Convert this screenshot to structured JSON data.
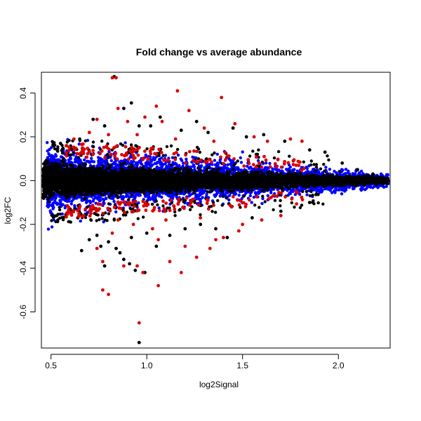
{
  "chart_data": {
    "type": "scatter",
    "title": "Fold change vs average abundance",
    "xlabel": "log2Signal",
    "ylabel": "log2FC",
    "xlim": [
      0.45,
      2.27
    ],
    "ylim": [
      -0.765,
      0.495
    ],
    "x_ticks": [
      0.5,
      1.0,
      1.5,
      2.0
    ],
    "x_tick_labels": [
      "0.5",
      "1.0",
      "1.5",
      "2.0"
    ],
    "y_ticks": [
      -0.6,
      -0.4,
      -0.2,
      0.0,
      0.2,
      0.4
    ],
    "y_tick_labels": [
      "-0.6",
      "-0.4",
      "-0.2",
      "0.0",
      "0.2",
      "0.4"
    ],
    "grid": false,
    "legend": "none",
    "colors": {
      "background_points": "#000000",
      "significant_fc": "#0000ff",
      "highlighted": "#dd0000"
    },
    "series": [
      {
        "color": "#000000",
        "points": [
          [
            0.83,
            0.475
          ],
          [
            0.92,
            0.355
          ],
          [
            0.88,
            0.33
          ],
          [
            0.72,
            0.28
          ],
          [
            0.78,
            0.25
          ],
          [
            0.96,
            0.25
          ],
          [
            1.02,
            0.25
          ],
          [
            1.07,
            0.29
          ],
          [
            1.18,
            0.23
          ],
          [
            1.26,
            0.27
          ],
          [
            1.32,
            0.22
          ],
          [
            1.45,
            0.24
          ],
          [
            1.52,
            0.2
          ],
          [
            1.61,
            0.21
          ],
          [
            1.72,
            0.18
          ],
          [
            0.55,
            0.17
          ],
          [
            0.6,
            0.15
          ],
          [
            0.65,
            0.19
          ],
          [
            0.52,
            0.08
          ],
          [
            1.85,
            0.14
          ],
          [
            1.93,
            0.13
          ],
          [
            2.02,
            0.08
          ],
          [
            2.1,
            0.05
          ],
          [
            2.18,
            0.03
          ],
          [
            2.22,
            0.01
          ],
          [
            2.24,
            -0.01
          ],
          [
            2.15,
            0.02
          ],
          [
            0.6,
            -0.13
          ],
          [
            0.64,
            -0.17
          ],
          [
            0.66,
            -0.32
          ],
          [
            0.7,
            -0.27
          ],
          [
            0.74,
            -0.25
          ],
          [
            0.76,
            -0.3
          ],
          [
            0.8,
            -0.28
          ],
          [
            0.84,
            -0.31
          ],
          [
            0.86,
            -0.33
          ],
          [
            0.88,
            -0.36
          ],
          [
            0.91,
            -0.38
          ],
          [
            0.94,
            -0.41
          ],
          [
            0.96,
            -0.74
          ],
          [
            0.99,
            -0.42
          ],
          [
            0.78,
            -0.39
          ],
          [
            1.05,
            -0.3
          ],
          [
            1.12,
            -0.25
          ],
          [
            1.2,
            -0.22
          ],
          [
            1.28,
            -0.2
          ],
          [
            1.36,
            -0.22
          ],
          [
            1.42,
            -0.26
          ],
          [
            1.55,
            -0.17
          ],
          [
            1.7,
            -0.14
          ],
          [
            1.85,
            -0.1
          ],
          [
            0.92,
            -0.26
          ],
          [
            1.0,
            -0.24
          ]
        ]
      },
      {
        "color": "#dd0000",
        "points": [
          [
            0.82,
            0.47
          ],
          [
            0.84,
            0.47
          ],
          [
            1.16,
            0.41
          ],
          [
            1.39,
            0.38
          ],
          [
            0.85,
            0.33
          ],
          [
            1.05,
            0.34
          ],
          [
            1.22,
            0.32
          ],
          [
            0.9,
            0.27
          ],
          [
            0.99,
            0.29
          ],
          [
            1.08,
            0.27
          ],
          [
            0.74,
            0.28
          ],
          [
            0.7,
            0.22
          ],
          [
            1.3,
            0.24
          ],
          [
            1.46,
            0.26
          ],
          [
            1.56,
            0.2
          ],
          [
            1.63,
            0.18
          ],
          [
            1.75,
            0.19
          ],
          [
            1.81,
            0.18
          ],
          [
            0.95,
            0.21
          ],
          [
            1.15,
            0.19
          ],
          [
            1.35,
            0.18
          ],
          [
            0.62,
            0.19
          ],
          [
            0.8,
            0.21
          ],
          [
            0.98,
            -0.42
          ],
          [
            0.8,
            -0.52
          ],
          [
            0.77,
            -0.5
          ],
          [
            1.06,
            -0.48
          ],
          [
            0.96,
            -0.65
          ],
          [
            1.18,
            -0.42
          ],
          [
            0.77,
            -0.37
          ],
          [
            0.74,
            -0.31
          ],
          [
            0.95,
            -0.39
          ],
          [
            0.88,
            -0.39
          ],
          [
            1.12,
            -0.37
          ],
          [
            1.2,
            -0.3
          ],
          [
            1.26,
            -0.35
          ],
          [
            1.33,
            -0.31
          ],
          [
            1.36,
            -0.27
          ],
          [
            1.4,
            -0.26
          ],
          [
            1.48,
            -0.23
          ],
          [
            1.5,
            -0.2
          ],
          [
            1.6,
            -0.18
          ],
          [
            1.7,
            -0.16
          ],
          [
            1.03,
            -0.22
          ],
          [
            0.93,
            -0.2
          ],
          [
            1.1,
            -0.18
          ],
          [
            1.28,
            -0.17
          ],
          [
            0.82,
            -0.24
          ],
          [
            0.85,
            -0.18
          ],
          [
            1.06,
            -0.27
          ]
        ]
      }
    ]
  }
}
